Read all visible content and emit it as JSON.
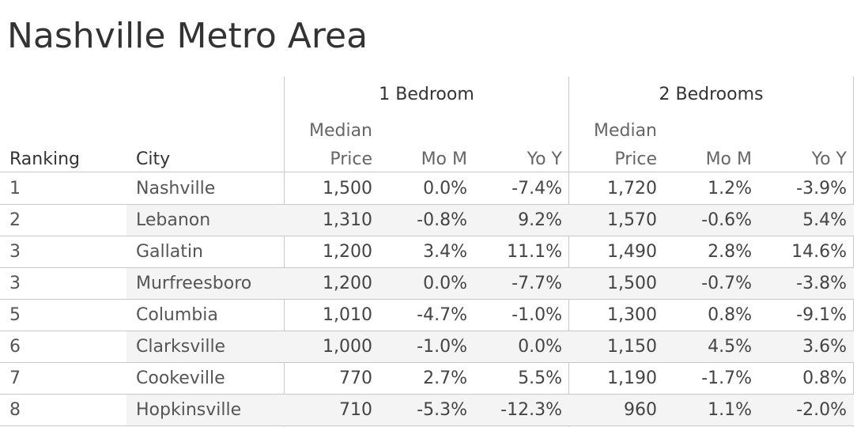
{
  "title": "Nashville Metro Area",
  "chart_data": {
    "type": "table",
    "groups": [
      "1 Bedroom",
      "2 Bedrooms"
    ],
    "column_headers": {
      "ranking": "Ranking",
      "city": "City",
      "median_top": "Median",
      "median_bottom": "Price",
      "mom": "Mo M",
      "yoy": "Yo Y"
    },
    "rows": [
      {
        "rank": "1",
        "city": "Nashville",
        "b1_price": "1,500",
        "b1_mom": "0.0%",
        "b1_yoy": "-7.4%",
        "b2_price": "1,720",
        "b2_mom": "1.2%",
        "b2_yoy": "-3.9%"
      },
      {
        "rank": "2",
        "city": "Lebanon",
        "b1_price": "1,310",
        "b1_mom": "-0.8%",
        "b1_yoy": "9.2%",
        "b2_price": "1,570",
        "b2_mom": "-0.6%",
        "b2_yoy": "5.4%"
      },
      {
        "rank": "3",
        "city": "Gallatin",
        "b1_price": "1,200",
        "b1_mom": "3.4%",
        "b1_yoy": "11.1%",
        "b2_price": "1,490",
        "b2_mom": "2.8%",
        "b2_yoy": "14.6%"
      },
      {
        "rank": "3",
        "city": "Murfreesboro",
        "b1_price": "1,200",
        "b1_mom": "0.0%",
        "b1_yoy": "-7.7%",
        "b2_price": "1,500",
        "b2_mom": "-0.7%",
        "b2_yoy": "-3.8%"
      },
      {
        "rank": "5",
        "city": "Columbia",
        "b1_price": "1,010",
        "b1_mom": "-4.7%",
        "b1_yoy": "-1.0%",
        "b2_price": "1,300",
        "b2_mom": "0.8%",
        "b2_yoy": "-9.1%"
      },
      {
        "rank": "6",
        "city": "Clarksville",
        "b1_price": "1,000",
        "b1_mom": "-1.0%",
        "b1_yoy": "0.0%",
        "b2_price": "1,150",
        "b2_mom": "4.5%",
        "b2_yoy": "3.6%"
      },
      {
        "rank": "7",
        "city": "Cookeville",
        "b1_price": "770",
        "b1_mom": "2.7%",
        "b1_yoy": "5.5%",
        "b2_price": "1,190",
        "b2_mom": "-1.7%",
        "b2_yoy": "0.8%"
      },
      {
        "rank": "8",
        "city": "Hopkinsville",
        "b1_price": "710",
        "b1_mom": "-5.3%",
        "b1_yoy": "-12.3%",
        "b2_price": "960",
        "b2_mom": "1.1%",
        "b2_yoy": "-2.0%"
      }
    ]
  }
}
